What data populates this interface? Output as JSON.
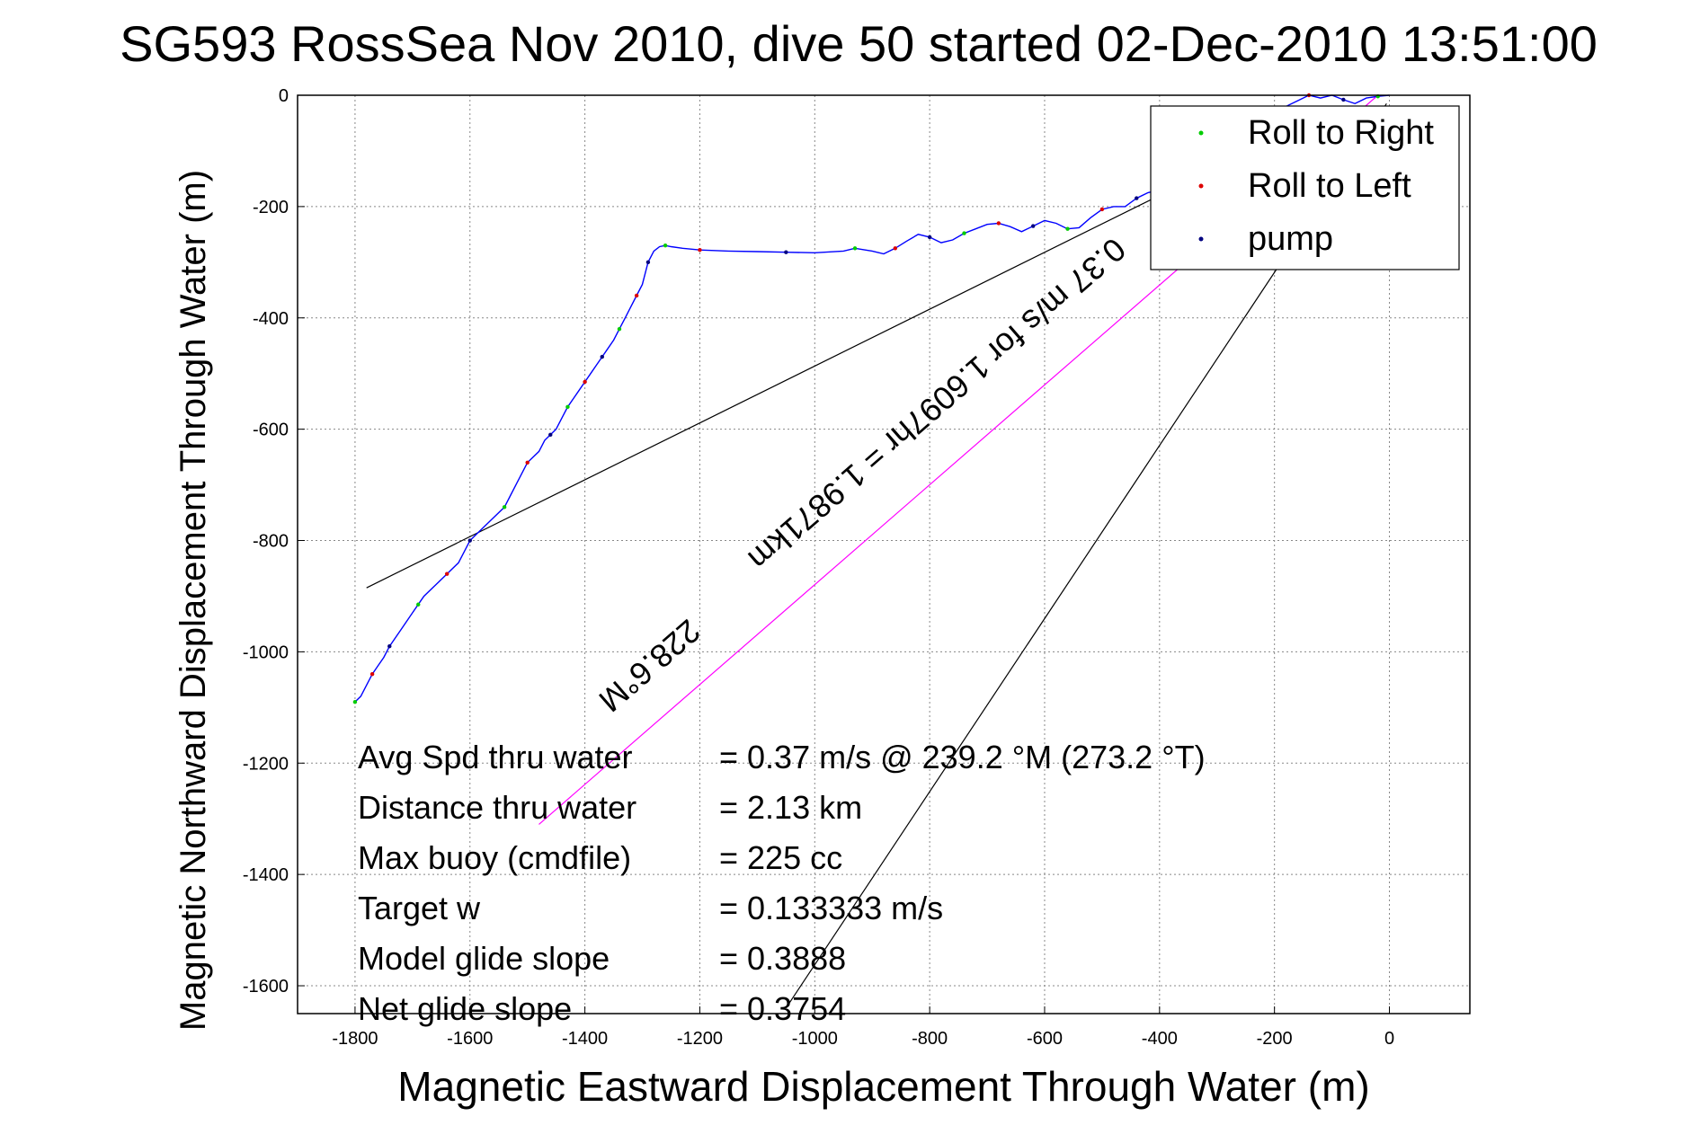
{
  "chart_data": {
    "type": "line",
    "title": "SG593 RossSea Nov 2010, dive 50 started 02-Dec-2010 13:51:00",
    "xlabel": "Magnetic Eastward Displacement Through Water (m)",
    "ylabel": "Magnetic Northward Displacement Through Water (m)",
    "xlim": [
      -1800,
      0
    ],
    "ylim": [
      -1650,
      0
    ],
    "xticks": [
      -1800,
      -1600,
      -1400,
      -1200,
      -1000,
      -800,
      -600,
      -400,
      -200,
      0
    ],
    "yticks": [
      0,
      -200,
      -400,
      -600,
      -800,
      -1000,
      -1200,
      -1400,
      -1600
    ],
    "grid": true,
    "legend_position": "top-right",
    "legend": [
      {
        "label": "Roll to Right",
        "color": "#00cc00"
      },
      {
        "label": "Roll to Left",
        "color": "#dd0000"
      },
      {
        "label": "pump",
        "color": "#000080"
      }
    ],
    "track": {
      "name": "glider track",
      "color": "#0000ff",
      "x": [
        -1800,
        -1790,
        -1780,
        -1770,
        -1760,
        -1750,
        -1740,
        -1720,
        -1700,
        -1690,
        -1680,
        -1660,
        -1640,
        -1620,
        -1610,
        -1600,
        -1580,
        -1560,
        -1540,
        -1530,
        -1520,
        -1500,
        -1480,
        -1470,
        -1460,
        -1450,
        -1440,
        -1430,
        -1420,
        -1410,
        -1400,
        -1390,
        -1380,
        -1370,
        -1360,
        -1350,
        -1340,
        -1330,
        -1320,
        -1310,
        -1300,
        -1295,
        -1290,
        -1280,
        -1270,
        -1260,
        -1250,
        -1230,
        -1200,
        -1150,
        -1100,
        -1050,
        -1000,
        -950,
        -930,
        -900,
        -880,
        -860,
        -840,
        -820,
        -800,
        -780,
        -760,
        -740,
        -720,
        -700,
        -680,
        -660,
        -640,
        -620,
        -600,
        -580,
        -560,
        -540,
        -520,
        -500,
        -480,
        -460,
        -440,
        -420,
        -400,
        -380,
        -360,
        -340,
        -320,
        -300,
        -280,
        -260,
        -240,
        -220,
        -200,
        -180,
        -160,
        -140,
        -120,
        -100,
        -80,
        -60,
        -40,
        -20,
        0
      ],
      "y": [
        -1090,
        -1080,
        -1060,
        -1040,
        -1025,
        -1010,
        -990,
        -960,
        -930,
        -915,
        -900,
        -880,
        -860,
        -840,
        -820,
        -800,
        -780,
        -760,
        -740,
        -720,
        -700,
        -660,
        -640,
        -620,
        -610,
        -600,
        -580,
        -560,
        -545,
        -530,
        -515,
        -500,
        -485,
        -470,
        -455,
        -440,
        -420,
        -400,
        -380,
        -360,
        -340,
        -320,
        -300,
        -280,
        -272,
        -270,
        -272,
        -275,
        -278,
        -280,
        -281,
        -282,
        -283,
        -280,
        -275,
        -280,
        -285,
        -275,
        -262,
        -250,
        -255,
        -265,
        -260,
        -248,
        -240,
        -232,
        -230,
        -236,
        -245,
        -235,
        -225,
        -230,
        -240,
        -238,
        -220,
        -205,
        -200,
        -200,
        -185,
        -175,
        -170,
        -160,
        -150,
        -140,
        -130,
        -120,
        -110,
        -100,
        -80,
        -60,
        -40,
        -20,
        -10,
        0,
        -5,
        0,
        -8,
        -15,
        -5,
        -2,
        0
      ]
    },
    "reference_lines": [
      {
        "name": "fit line",
        "color": "#000000",
        "x": [
          -1780,
          -400
        ],
        "y": [
          -885,
          -180
        ]
      },
      {
        "name": "heading line 228.6 M",
        "color": "#ff00ff",
        "x": [
          -1480,
          -20
        ],
        "y": [
          -1310,
          0
        ]
      },
      {
        "name": "slope line",
        "color": "#000000",
        "x": [
          -1050,
          -5
        ],
        "y": [
          -1640,
          -15
        ]
      }
    ],
    "annotations": [
      {
        "text": "228.6°M"
      },
      {
        "text": "0.37 m/s for 1.6097hr = 1.9871km"
      }
    ],
    "stats": [
      {
        "label": "Avg Spd thru water",
        "value": "=  0.37 m/s @ 239.2 °M (273.2 °T)"
      },
      {
        "label": "Distance thru water",
        "value": "=  2.13 km"
      },
      {
        "label": "Max buoy (cmdfile)",
        "value": "= 225 cc"
      },
      {
        "label": "Target w",
        "value": "= 0.133333 m/s"
      },
      {
        "label": "Model glide slope",
        "value": "= 0.3888"
      },
      {
        "label": "Net glide slope",
        "value": "= 0.3754"
      }
    ]
  }
}
